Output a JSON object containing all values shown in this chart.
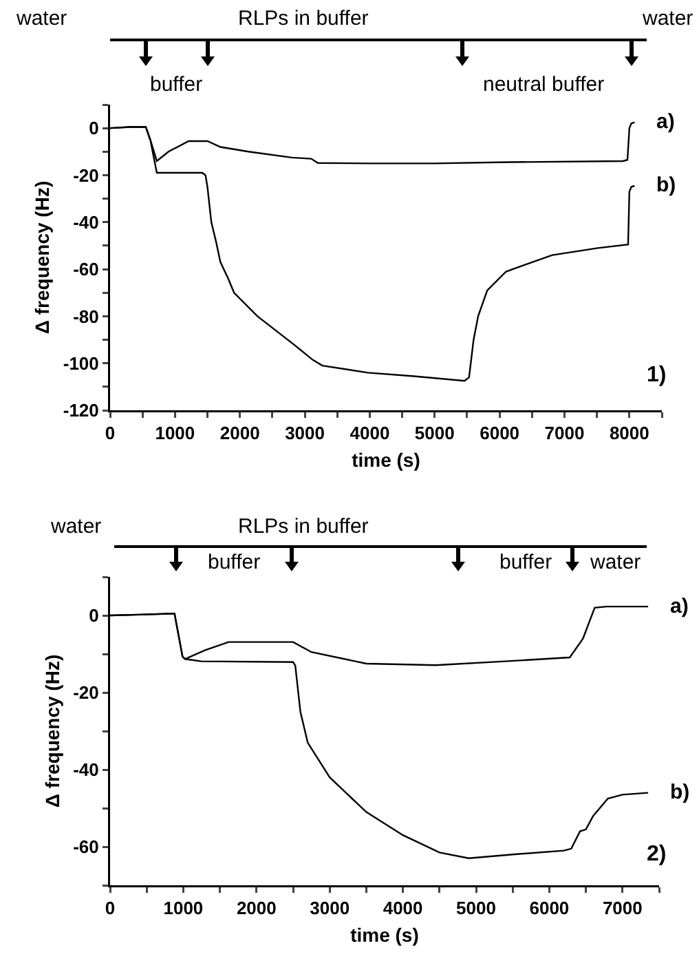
{
  "chart_data": [
    {
      "type": "line",
      "xlabel": "time (s)",
      "ylabel": "Δ frequency (Hz)",
      "xlim": [
        0,
        8500
      ],
      "ylim": [
        -120,
        10
      ],
      "xticks": [
        0,
        {
          "value": 500,
          "label": null
        },
        1000,
        {
          "value": 1500,
          "label": null
        },
        2000,
        {
          "value": 2500,
          "label": null
        },
        3000,
        {
          "value": 3500,
          "label": null
        },
        4000,
        {
          "value": 4500,
          "label": null
        },
        5000,
        {
          "value": 5500,
          "label": null
        },
        6000,
        {
          "value": 6500,
          "label": null
        },
        7000,
        {
          "value": 7500,
          "label": null
        },
        8000,
        {
          "value": 8500,
          "label": null
        }
      ],
      "yticks": [
        -120,
        {
          "value": -110,
          "label": null
        },
        -100,
        {
          "value": -90,
          "label": null
        },
        -80,
        {
          "value": -70,
          "label": null
        },
        -60,
        {
          "value": -50,
          "label": null
        },
        -40,
        {
          "value": -30,
          "label": null
        },
        -20,
        {
          "value": -10,
          "label": null
        },
        0,
        {
          "value": 10,
          "label": null
        }
      ],
      "series": [
        {
          "name": "a)",
          "color": "#000000",
          "x": [
            0,
            300,
            550,
            620,
            720,
            900,
            1210,
            1500,
            1700,
            2130,
            2800,
            3100,
            3200,
            4000,
            5000,
            6000,
            7900,
            7970,
            8000,
            8030,
            8080
          ],
          "values": [
            0,
            0.5,
            0.5,
            -5,
            -14,
            -10,
            -5.5,
            -5.5,
            -8,
            -10,
            -12.5,
            -13,
            -14.8,
            -15,
            -15,
            -14.5,
            -14,
            -13.5,
            0,
            2,
            2.5
          ]
        },
        {
          "name": "b)",
          "color": "#000000",
          "x": [
            0,
            300,
            550,
            620,
            720,
            1000,
            1420,
            1470,
            1500,
            1560,
            1630,
            1700,
            1820,
            1910,
            2270,
            2550,
            2830,
            3120,
            3270,
            3970,
            4680,
            5460,
            5530,
            5600,
            5670,
            5810,
            6100,
            6810,
            7510,
            7980,
            8000,
            8030,
            8080
          ],
          "values": [
            0,
            0.5,
            0.5,
            -5,
            -19,
            -19,
            -19,
            -20,
            -25,
            -40,
            -48,
            -57,
            -64,
            -70,
            -80,
            -86,
            -92,
            -98.5,
            -101,
            -104,
            -105.5,
            -107.5,
            -106,
            -90,
            -80,
            -69,
            -61,
            -54,
            -51,
            -49.5,
            -27,
            -25,
            -24.5
          ]
        }
      ],
      "annotations": [
        "water",
        "RLPs in buffer",
        "buffer",
        "neutral buffer",
        "water",
        "1)"
      ],
      "legend": false,
      "grid": false,
      "marker": "none",
      "line_style": "solid"
    },
    {
      "type": "line",
      "xlabel": "time (s)",
      "ylabel": "Δ frequency (Hz)",
      "xlim": [
        0,
        7500
      ],
      "ylim": [
        -70,
        10
      ],
      "xticks": [
        0,
        {
          "value": 500,
          "label": null
        },
        1000,
        {
          "value": 1500,
          "label": null
        },
        2000,
        {
          "value": 2500,
          "label": null
        },
        3000,
        {
          "value": 3500,
          "label": null
        },
        4000,
        {
          "value": 4500,
          "label": null
        },
        5000,
        {
          "value": 5500,
          "label": null
        },
        6000,
        {
          "value": 6500,
          "label": null
        },
        7000,
        {
          "value": 7500,
          "label": null
        }
      ],
      "yticks": [
        {
          "value": -70,
          "label": null
        },
        -60,
        {
          "value": -50,
          "label": null
        },
        -40,
        {
          "value": -30,
          "label": null
        },
        -20,
        {
          "value": -10,
          "label": null
        },
        0,
        {
          "value": 10,
          "label": null
        }
      ],
      "series": [
        {
          "name": "a)",
          "color": "#000000",
          "x": [
            0,
            400,
            880,
            990,
            1025,
            1300,
            1620,
            2000,
            2500,
            2750,
            3500,
            4450,
            5400,
            6280,
            6460,
            6620,
            6780,
            7350
          ],
          "values": [
            0,
            0.2,
            0.5,
            -10.7,
            -11.3,
            -9,
            -6.9,
            -6.9,
            -6.9,
            -9.5,
            -12.5,
            -12.9,
            -11.9,
            -10.9,
            -6,
            2,
            2.3,
            2.3
          ]
        },
        {
          "name": "b)",
          "color": "#000000",
          "x": [
            0,
            400,
            880,
            990,
            1025,
            1245,
            2500,
            2530,
            2600,
            2700,
            3000,
            3500,
            4000,
            4500,
            4900,
            5500,
            6200,
            6300,
            6420,
            6500,
            6600,
            6800,
            7000,
            7350
          ],
          "values": [
            0,
            0.2,
            0.5,
            -10.7,
            -11.3,
            -11.9,
            -12.1,
            -13,
            -25,
            -33,
            -42,
            -51,
            -57,
            -61.5,
            -63,
            -62,
            -61,
            -60.5,
            -56,
            -55.5,
            -52,
            -47.5,
            -46.5,
            -46
          ]
        }
      ],
      "annotations": [
        "water",
        "RLPs in buffer",
        "buffer",
        "buffer",
        "water",
        "2)"
      ],
      "legend": false,
      "grid": false,
      "marker": "none",
      "line_style": "solid"
    }
  ]
}
